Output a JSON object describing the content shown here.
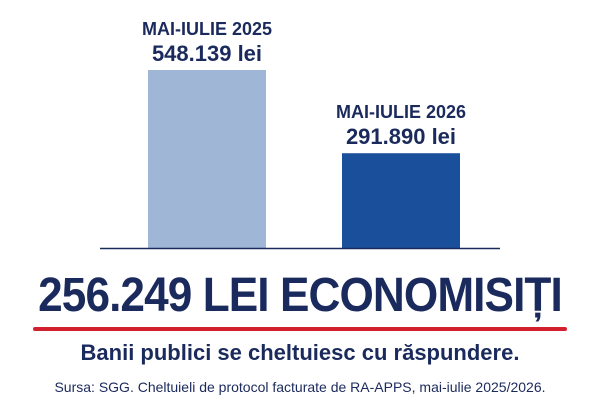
{
  "chart_data": {
    "type": "bar",
    "categories": [
      "MAI-IULIE 2025",
      "MAI-IULIE 2026"
    ],
    "values": [
      548139,
      291890
    ],
    "value_labels": [
      "548.139 lei",
      "291.890 lei"
    ],
    "ylim": [
      0,
      548139
    ],
    "grid": false,
    "colors": [
      "#9fb6d6",
      "#1a4f9c"
    ]
  },
  "headline": "256.249 LEI ECONOMISIȚI",
  "tagline": "Banii publici se cheltuiesc cu răspundere.",
  "source": "Sursa: SGG. Cheltuieli de protocol facturate de RA-APPS, mai-iulie 2025/2026.",
  "colors": {
    "text": "#1b2a5c",
    "accent_underline": "#d2202f",
    "axis": "#1b2a5c"
  }
}
